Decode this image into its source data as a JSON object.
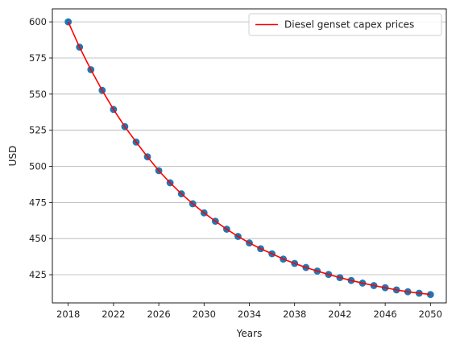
{
  "chart_data": {
    "type": "line",
    "xlabel": "Years",
    "ylabel": "USD",
    "xlim": [
      2016.6,
      2051.4
    ],
    "ylim": [
      405.5,
      609.0
    ],
    "x_ticks": [
      2018,
      2022,
      2026,
      2030,
      2034,
      2038,
      2042,
      2046,
      2050
    ],
    "y_ticks": [
      425,
      450,
      475,
      500,
      525,
      550,
      575,
      600
    ],
    "grid": "horizontal",
    "legend": {
      "position": "top-right",
      "entries": [
        "Diesel genset capex prices"
      ]
    },
    "series": [
      {
        "name": "Diesel genset capex prices",
        "color_line": "#ff0000",
        "color_marker": "#1f77b4",
        "x": [
          2018,
          2019,
          2020,
          2021,
          2022,
          2023,
          2024,
          2025,
          2026,
          2027,
          2028,
          2029,
          2030,
          2031,
          2032,
          2033,
          2034,
          2035,
          2036,
          2037,
          2038,
          2039,
          2040,
          2041,
          2042,
          2043,
          2044,
          2045,
          2046,
          2047,
          2048,
          2049,
          2050
        ],
        "y": [
          600.0,
          582.5,
          566.9,
          552.6,
          539.4,
          527.5,
          516.8,
          506.6,
          497.0,
          488.6,
          481.0,
          474.1,
          467.8,
          462.0,
          456.5,
          451.5,
          447.0,
          443.0,
          439.5,
          435.8,
          432.8,
          430.0,
          427.5,
          425.2,
          423.0,
          421.0,
          419.2,
          417.5,
          416.0,
          414.5,
          413.2,
          412.2,
          411.3
        ]
      }
    ]
  }
}
